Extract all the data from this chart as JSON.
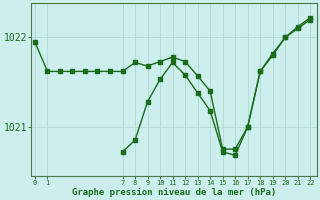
{
  "line1_x": [
    0,
    1,
    2,
    3,
    4,
    5,
    6,
    7,
    8,
    9,
    10,
    11,
    12,
    13,
    14,
    15,
    16,
    17,
    18,
    19,
    20,
    21,
    22
  ],
  "line1_y": [
    1021.95,
    1021.62,
    1021.62,
    1021.62,
    1021.62,
    1021.62,
    1021.62,
    1021.62,
    1021.72,
    1021.68,
    1021.73,
    1021.78,
    1021.73,
    1021.57,
    1021.4,
    1020.75,
    1020.75,
    1021.0,
    1021.62,
    1021.8,
    1022.0,
    1022.1,
    1022.2
  ],
  "line2_x": [
    7,
    8,
    9,
    10,
    11,
    12,
    13,
    14,
    15,
    16,
    17,
    18,
    19,
    20,
    21,
    22
  ],
  "line2_y": [
    1020.72,
    1020.85,
    1021.28,
    1021.53,
    1021.72,
    1021.58,
    1021.38,
    1021.18,
    1020.72,
    1020.68,
    1021.0,
    1021.62,
    1021.82,
    1022.0,
    1022.12,
    1022.22
  ],
  "xlabel": "Graphe pression niveau de la mer (hPa)",
  "xticks": [
    0,
    1,
    7,
    8,
    9,
    10,
    11,
    12,
    13,
    14,
    15,
    16,
    17,
    18,
    19,
    20,
    21,
    22
  ],
  "yticks": [
    1021.0,
    1022.0
  ],
  "ylim": [
    1020.45,
    1022.38
  ],
  "xlim": [
    -0.3,
    22.5
  ],
  "line_color": "#1a6b1a",
  "bg_color": "#cceeed",
  "grid_color": "#b0d8d5",
  "marker_size": 2.5,
  "linewidth": 1.0
}
